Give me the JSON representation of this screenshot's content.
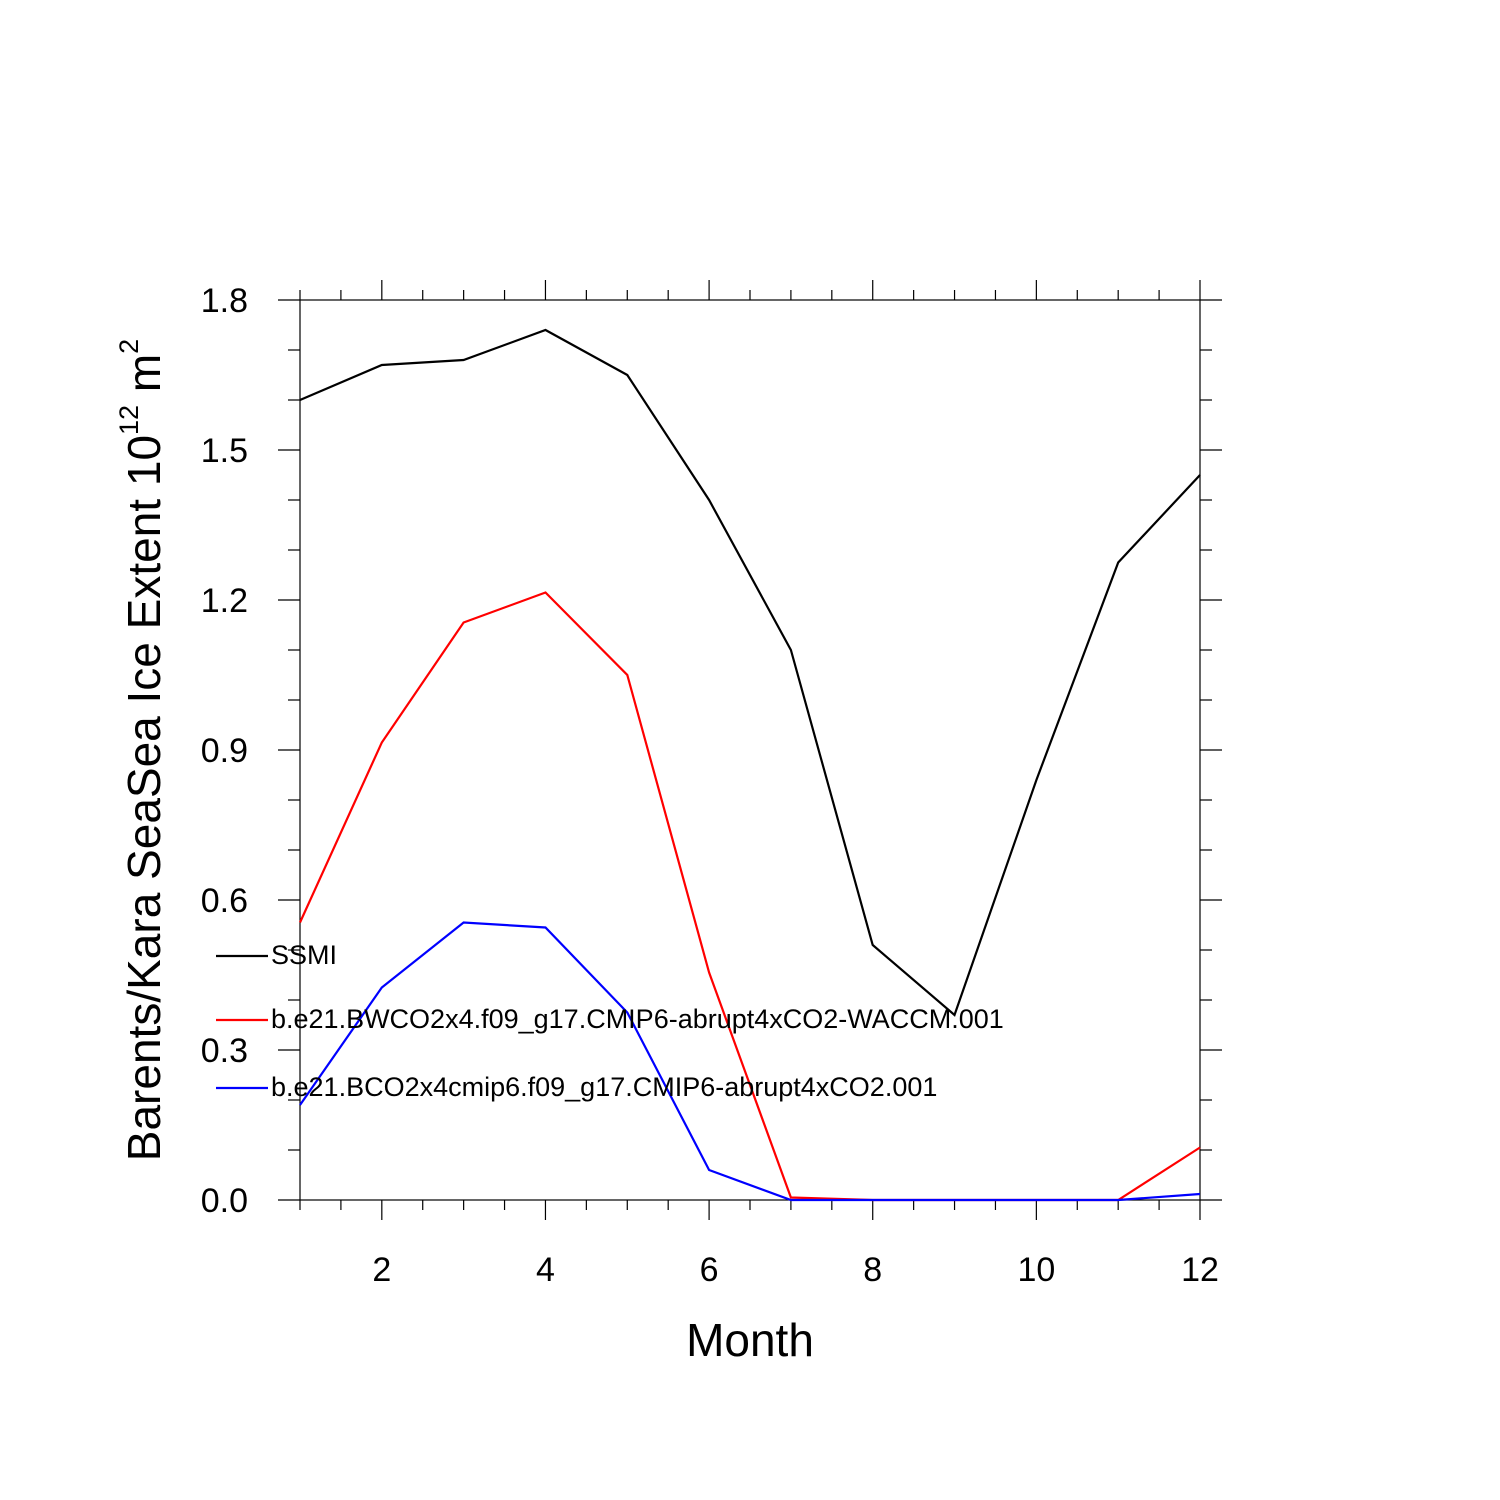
{
  "chart_data": {
    "type": "line",
    "title": "",
    "xlabel": "Month",
    "ylabel_main": "Barents/Kara SeaSea Ice Extent 10",
    "ylabel_exp": "12",
    "ylabel_unit": " m",
    "ylabel_unit_exp": "2",
    "xlim": [
      1,
      12
    ],
    "ylim": [
      0.0,
      1.8
    ],
    "xticks": [
      2,
      4,
      6,
      8,
      10,
      12
    ],
    "xtick_labels": [
      "2",
      "4",
      "6",
      "8",
      "10",
      "12"
    ],
    "yticks": [
      0.0,
      0.3,
      0.6,
      0.9,
      1.2,
      1.5,
      1.8
    ],
    "ytick_labels": [
      "0.0",
      "0.3",
      "0.6",
      "0.9",
      "1.2",
      "1.5",
      "1.8"
    ],
    "x": [
      1,
      2,
      3,
      4,
      5,
      6,
      7,
      8,
      9,
      10,
      11,
      12
    ],
    "legend_position": "lower-left",
    "series": [
      {
        "name": "SSMI",
        "color": "#000000",
        "values": [
          1.6,
          1.67,
          1.68,
          1.74,
          1.65,
          1.4,
          1.1,
          0.51,
          0.37,
          0.84,
          1.275,
          1.45
        ]
      },
      {
        "name": "b.e21.BWCO2x4.f09_g17.CMIP6-abrupt4xCO2-WACCM.001",
        "color": "#ff0000",
        "values": [
          0.555,
          0.915,
          1.155,
          1.215,
          1.05,
          0.455,
          0.005,
          0.0,
          0.0,
          0.0,
          0.0,
          0.105
        ]
      },
      {
        "name": "b.e21.BCO2x4cmip6.f09_g17.CMIP6-abrupt4xCO2.001",
        "color": "#0000ff",
        "values": [
          0.19,
          0.425,
          0.555,
          0.545,
          0.375,
          0.06,
          0.0,
          0.0,
          0.0,
          0.0,
          0.0,
          0.012
        ]
      }
    ]
  }
}
